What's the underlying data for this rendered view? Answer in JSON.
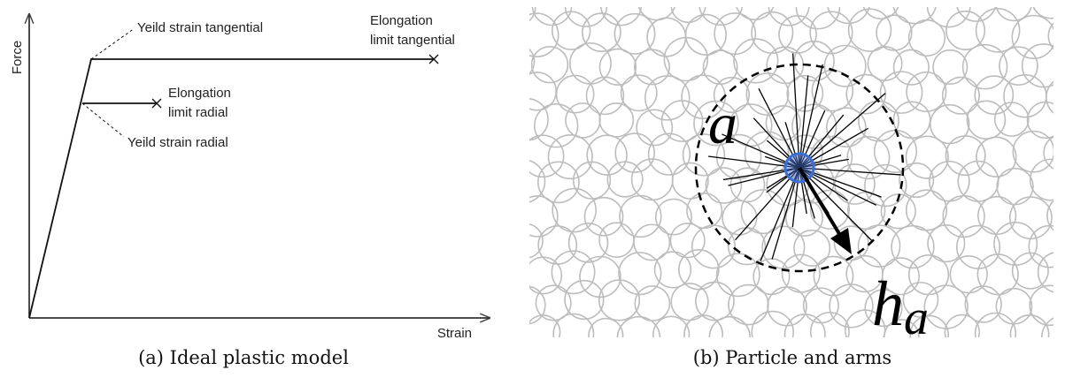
{
  "panel_a": {
    "axis_y": "Force",
    "axis_x": "Strain",
    "annotations": {
      "yield_tangential": "Yeild strain tangential",
      "elongation_tangential": [
        "Elongation",
        "limit tangential"
      ],
      "elongation_radial": [
        "Elongation",
        "limit radial"
      ],
      "yield_radial": "Yeild strain radial"
    },
    "caption": "(a) Ideal plastic model"
  },
  "panel_b": {
    "label_a": "a",
    "label_h": "h",
    "label_h_sub": "a",
    "caption": "(b) Particle and arms"
  }
}
